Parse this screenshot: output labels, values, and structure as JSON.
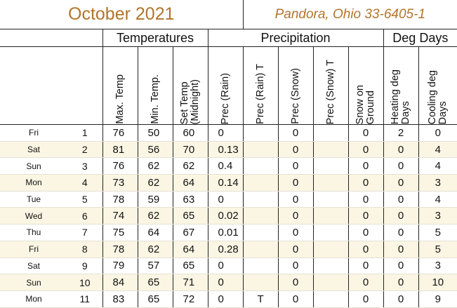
{
  "title": {
    "month": "October 2021",
    "location": "Pandora, Ohio 33-6405-1"
  },
  "groups": {
    "temperatures": "Temperatures",
    "precipitation": "Precipitation",
    "degdays": "Deg Days"
  },
  "columns": {
    "max_temp": "Max. Temp",
    "min_temp": "Min. Temp.",
    "set_temp": "Set Temp\n(Midnight)",
    "prec_rain": "Prec (Rain)",
    "prec_rain_t": "Prec (Rain) T",
    "prec_snow": "Prec (Snow)",
    "prec_snow_t": "Prec (Snow) T",
    "snow_ground": "Snow on\nGround",
    "heating": "Heating deg\nDays",
    "cooling": "Cooling deg\nDays"
  },
  "rows": [
    {
      "dow": "Fri",
      "day": "1",
      "max": "76",
      "min": "50",
      "set": "60",
      "rain": "0",
      "rain_t": "",
      "snow": "0",
      "snow_t": "",
      "ground": "0",
      "heat": "2",
      "cool": "0"
    },
    {
      "dow": "Sat",
      "day": "2",
      "max": "81",
      "min": "56",
      "set": "70",
      "rain": "0.13",
      "rain_t": "",
      "snow": "0",
      "snow_t": "",
      "ground": "0",
      "heat": "0",
      "cool": "4"
    },
    {
      "dow": "Sun",
      "day": "3",
      "max": "76",
      "min": "62",
      "set": "62",
      "rain": "0.4",
      "rain_t": "",
      "snow": "0",
      "snow_t": "",
      "ground": "0",
      "heat": "0",
      "cool": "4"
    },
    {
      "dow": "Mon",
      "day": "4",
      "max": "73",
      "min": "62",
      "set": "64",
      "rain": "0.14",
      "rain_t": "",
      "snow": "0",
      "snow_t": "",
      "ground": "0",
      "heat": "0",
      "cool": "3"
    },
    {
      "dow": "Tue",
      "day": "5",
      "max": "78",
      "min": "59",
      "set": "63",
      "rain": "0",
      "rain_t": "",
      "snow": "0",
      "snow_t": "",
      "ground": "0",
      "heat": "0",
      "cool": "4"
    },
    {
      "dow": "Wed",
      "day": "6",
      "max": "74",
      "min": "62",
      "set": "65",
      "rain": "0.02",
      "rain_t": "",
      "snow": "0",
      "snow_t": "",
      "ground": "0",
      "heat": "0",
      "cool": "3"
    },
    {
      "dow": "Thu",
      "day": "7",
      "max": "75",
      "min": "64",
      "set": "67",
      "rain": "0.01",
      "rain_t": "",
      "snow": "0",
      "snow_t": "",
      "ground": "0",
      "heat": "0",
      "cool": "5"
    },
    {
      "dow": "Fri",
      "day": "8",
      "max": "78",
      "min": "62",
      "set": "64",
      "rain": "0.28",
      "rain_t": "",
      "snow": "0",
      "snow_t": "",
      "ground": "0",
      "heat": "0",
      "cool": "5"
    },
    {
      "dow": "Sat",
      "day": "9",
      "max": "79",
      "min": "57",
      "set": "65",
      "rain": "0",
      "rain_t": "",
      "snow": "0",
      "snow_t": "",
      "ground": "0",
      "heat": "0",
      "cool": "3"
    },
    {
      "dow": "Sun",
      "day": "10",
      "max": "84",
      "min": "65",
      "set": "71",
      "rain": "0",
      "rain_t": "",
      "snow": "0",
      "snow_t": "",
      "ground": "0",
      "heat": "0",
      "cool": "10"
    },
    {
      "dow": "Mon",
      "day": "11",
      "max": "83",
      "min": "65",
      "set": "72",
      "rain": "0",
      "rain_t": "T",
      "snow": "0",
      "snow_t": "",
      "ground": "0",
      "heat": "0",
      "cool": "9"
    }
  ],
  "colors": {
    "title": "#b3752b",
    "alt_row": "#fbf6e4",
    "rule": "#222222"
  }
}
